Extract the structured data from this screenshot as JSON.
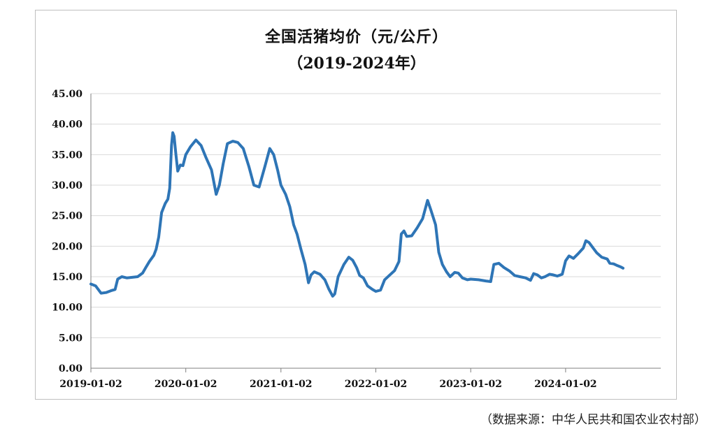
{
  "source_note": "（数据来源：中华人民共和国农业农村部）",
  "chart_data": {
    "type": "line",
    "title": "全国活猪均价（元/公斤）",
    "subtitle": "（2019-2024年）",
    "xlabel": "",
    "ylabel": "",
    "ylim": [
      0,
      45
    ],
    "yticks": [
      "0.00",
      "5.00",
      "10.00",
      "15.00",
      "20.00",
      "25.00",
      "30.00",
      "35.00",
      "40.00",
      "45.00"
    ],
    "xticks": [
      "2019-01-02",
      "2020-01-02",
      "2021-01-02",
      "2022-01-02",
      "2023-01-02",
      "2024-01-02"
    ],
    "xlim": [
      "2019-01-02",
      "2025-01-02"
    ],
    "grid": true,
    "legend": "none",
    "line_color": "#2e75b6",
    "series": [
      {
        "points": [
          [
            "2019-01-02",
            13.8
          ],
          [
            "2019-01-20",
            13.5
          ],
          [
            "2019-02-10",
            12.3
          ],
          [
            "2019-03-01",
            12.4
          ],
          [
            "2019-03-20",
            12.7
          ],
          [
            "2019-04-05",
            12.9
          ],
          [
            "2019-04-15",
            14.6
          ],
          [
            "2019-05-01",
            15.0
          ],
          [
            "2019-05-20",
            14.8
          ],
          [
            "2019-06-10",
            14.9
          ],
          [
            "2019-07-01",
            15.0
          ],
          [
            "2019-07-20",
            15.6
          ],
          [
            "2019-08-01",
            16.5
          ],
          [
            "2019-08-15",
            17.5
          ],
          [
            "2019-09-01",
            18.5
          ],
          [
            "2019-09-10",
            19.5
          ],
          [
            "2019-09-20",
            21.5
          ],
          [
            "2019-10-01",
            25.5
          ],
          [
            "2019-10-15",
            27.0
          ],
          [
            "2019-10-25",
            27.7
          ],
          [
            "2019-11-01",
            29.5
          ],
          [
            "2019-11-08",
            36.5
          ],
          [
            "2019-11-13",
            38.6
          ],
          [
            "2019-11-18",
            38.0
          ],
          [
            "2019-11-25",
            35.0
          ],
          [
            "2019-12-02",
            32.3
          ],
          [
            "2019-12-12",
            33.3
          ],
          [
            "2019-12-22",
            33.2
          ],
          [
            "2020-01-02",
            35.0
          ],
          [
            "2020-01-20",
            36.3
          ],
          [
            "2020-02-10",
            37.4
          ],
          [
            "2020-03-01",
            36.5
          ],
          [
            "2020-03-20",
            34.5
          ],
          [
            "2020-04-10",
            32.5
          ],
          [
            "2020-04-28",
            28.5
          ],
          [
            "2020-05-10",
            30.0
          ],
          [
            "2020-05-25",
            33.5
          ],
          [
            "2020-06-10",
            36.8
          ],
          [
            "2020-07-01",
            37.2
          ],
          [
            "2020-07-20",
            37.0
          ],
          [
            "2020-08-10",
            36.0
          ],
          [
            "2020-09-01",
            33.0
          ],
          [
            "2020-09-20",
            30.0
          ],
          [
            "2020-10-10",
            29.7
          ],
          [
            "2020-11-01",
            33.0
          ],
          [
            "2020-11-20",
            36.0
          ],
          [
            "2020-12-05",
            35.0
          ],
          [
            "2020-12-20",
            32.5
          ],
          [
            "2021-01-02",
            30.0
          ],
          [
            "2021-01-20",
            28.5
          ],
          [
            "2021-02-05",
            26.5
          ],
          [
            "2021-02-20",
            23.5
          ],
          [
            "2021-03-05",
            22.0
          ],
          [
            "2021-03-20",
            19.5
          ],
          [
            "2021-04-05",
            17.0
          ],
          [
            "2021-04-18",
            14.0
          ],
          [
            "2021-04-28",
            15.3
          ],
          [
            "2021-05-10",
            15.8
          ],
          [
            "2021-06-01",
            15.4
          ],
          [
            "2021-06-20",
            14.5
          ],
          [
            "2021-07-05",
            13.0
          ],
          [
            "2021-07-20",
            11.8
          ],
          [
            "2021-07-28",
            12.2
          ],
          [
            "2021-08-10",
            15.0
          ],
          [
            "2021-09-01",
            17.0
          ],
          [
            "2021-09-20",
            18.2
          ],
          [
            "2021-10-05",
            17.7
          ],
          [
            "2021-10-20",
            16.5
          ],
          [
            "2021-11-01",
            15.2
          ],
          [
            "2021-11-15",
            14.8
          ],
          [
            "2021-12-01",
            13.5
          ],
          [
            "2021-12-20",
            12.9
          ],
          [
            "2022-01-02",
            12.6
          ],
          [
            "2022-01-20",
            12.8
          ],
          [
            "2022-02-05",
            14.5
          ],
          [
            "2022-02-25",
            15.3
          ],
          [
            "2022-03-15",
            16.0
          ],
          [
            "2022-04-01",
            17.5
          ],
          [
            "2022-04-10",
            22.0
          ],
          [
            "2022-04-20",
            22.5
          ],
          [
            "2022-05-01",
            21.6
          ],
          [
            "2022-05-20",
            21.7
          ],
          [
            "2022-06-10",
            23.0
          ],
          [
            "2022-07-01",
            24.5
          ],
          [
            "2022-07-20",
            27.5
          ],
          [
            "2022-08-01",
            26.0
          ],
          [
            "2022-08-20",
            23.5
          ],
          [
            "2022-09-01",
            19.0
          ],
          [
            "2022-09-15",
            17.0
          ],
          [
            "2022-10-01",
            15.8
          ],
          [
            "2022-10-15",
            15.0
          ],
          [
            "2022-11-01",
            15.7
          ],
          [
            "2022-11-15",
            15.6
          ],
          [
            "2022-12-01",
            14.8
          ],
          [
            "2022-12-20",
            14.5
          ],
          [
            "2023-01-02",
            14.6
          ],
          [
            "2023-02-01",
            14.5
          ],
          [
            "2023-03-01",
            14.3
          ],
          [
            "2023-03-20",
            14.2
          ],
          [
            "2023-04-01",
            17.0
          ],
          [
            "2023-04-20",
            17.2
          ],
          [
            "2023-05-10",
            16.5
          ],
          [
            "2023-06-01",
            15.9
          ],
          [
            "2023-06-20",
            15.2
          ],
          [
            "2023-07-10",
            15.0
          ],
          [
            "2023-08-01",
            14.8
          ],
          [
            "2023-08-20",
            14.4
          ],
          [
            "2023-09-01",
            15.5
          ],
          [
            "2023-09-15",
            15.3
          ],
          [
            "2023-10-01",
            14.8
          ],
          [
            "2023-10-15",
            15.0
          ],
          [
            "2023-11-01",
            15.4
          ],
          [
            "2023-11-15",
            15.3
          ],
          [
            "2023-12-01",
            15.1
          ],
          [
            "2023-12-20",
            15.4
          ],
          [
            "2024-01-02",
            17.6
          ],
          [
            "2024-01-15",
            18.4
          ],
          [
            "2024-02-01",
            18.0
          ],
          [
            "2024-02-20",
            18.8
          ],
          [
            "2024-03-10",
            19.7
          ],
          [
            "2024-03-20",
            20.9
          ],
          [
            "2024-04-01",
            20.6
          ],
          [
            "2024-04-15",
            19.8
          ],
          [
            "2024-05-01",
            18.9
          ],
          [
            "2024-05-20",
            18.2
          ],
          [
            "2024-06-10",
            17.9
          ],
          [
            "2024-06-20",
            17.2
          ],
          [
            "2024-07-05",
            17.1
          ],
          [
            "2024-07-20",
            16.8
          ],
          [
            "2024-08-01",
            16.6
          ],
          [
            "2024-08-10",
            16.4
          ]
        ]
      }
    ]
  }
}
